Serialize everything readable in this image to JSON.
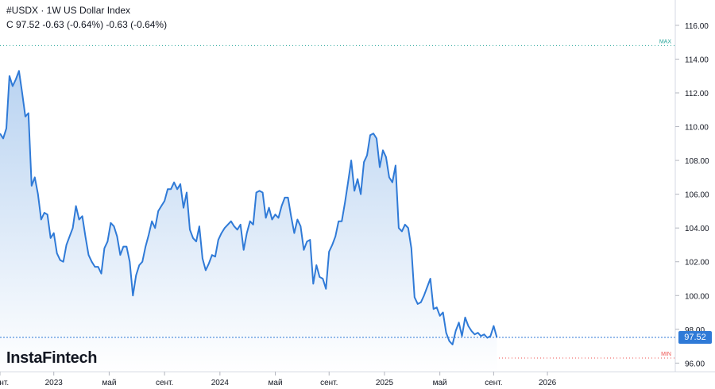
{
  "header": {
    "title": "#USDX · 1W US Dollar Index",
    "quote": "C 97.52 -0.63 (-0.64%) -0.63 (-0.64%)"
  },
  "brand": "InstaFintech",
  "colors": {
    "line": "#2f7ad7",
    "fill_top": "#b9d3f1",
    "fill_bottom": "#ffffff",
    "max_marker": "#26a69a",
    "min_marker": "#ef5350",
    "price_tag": "#2f7ad7"
  },
  "chart_data": {
    "type": "area",
    "symbol": "#USDX",
    "timeframe": "1W",
    "last_price": "97.52",
    "price_tag_label": "97.52",
    "max_label": "MAX",
    "min_label": "MIN",
    "max_value": 114.8,
    "min_value": 96.3,
    "ylim": [
      95.5,
      117.5
    ],
    "y_ticks": [
      96.0,
      98.0,
      100.0,
      102.0,
      104.0,
      106.0,
      108.0,
      110.0,
      112.0,
      114.0,
      116.0
    ],
    "y_tick_labels": [
      "96.00",
      "98.00",
      "100.00",
      "102.00",
      "104.00",
      "106.00",
      "108.00",
      "110.00",
      "112.00",
      "114.00",
      "116.00"
    ],
    "x_range_weeks": [
      0,
      213.4
    ],
    "x_ticks": [
      {
        "week": 0,
        "label": "сент."
      },
      {
        "week": 17,
        "label": "2023"
      },
      {
        "week": 34.5,
        "label": "май"
      },
      {
        "week": 52,
        "label": "сент."
      },
      {
        "week": 69.5,
        "label": "2024"
      },
      {
        "week": 87,
        "label": "май"
      },
      {
        "week": 104,
        "label": "сент."
      },
      {
        "week": 121.5,
        "label": "2025"
      },
      {
        "week": 139,
        "label": "май"
      },
      {
        "week": 156,
        "label": "сент."
      },
      {
        "week": 173,
        "label": "2026"
      }
    ],
    "series": [
      {
        "values": [
          109.6,
          109.3,
          109.9,
          113.0,
          112.4,
          112.8,
          113.3,
          112.0,
          110.6,
          110.8,
          106.5,
          107.0,
          106.0,
          104.5,
          104.9,
          104.8,
          103.4,
          103.7,
          102.5,
          102.1,
          102.0,
          103.0,
          103.5,
          104.0,
          105.3,
          104.5,
          104.7,
          103.5,
          102.4,
          102.0,
          101.7,
          101.7,
          101.3,
          102.8,
          103.2,
          104.3,
          104.1,
          103.5,
          102.4,
          102.9,
          102.9,
          102.0,
          100.0,
          101.2,
          101.8,
          102.0,
          102.9,
          103.6,
          104.4,
          104.0,
          105.0,
          105.3,
          105.6,
          106.3,
          106.3,
          106.7,
          106.3,
          106.6,
          105.2,
          106.1,
          103.9,
          103.4,
          103.2,
          104.1,
          102.2,
          101.5,
          101.9,
          102.4,
          102.3,
          103.3,
          103.7,
          104.0,
          104.2,
          104.4,
          104.1,
          103.9,
          104.2,
          102.7,
          103.7,
          104.4,
          104.2,
          106.1,
          106.2,
          106.1,
          104.6,
          105.2,
          104.5,
          104.8,
          104.6,
          105.3,
          105.8,
          105.8,
          104.7,
          103.7,
          104.5,
          104.1,
          102.7,
          103.2,
          103.3,
          100.7,
          101.8,
          101.1,
          101.0,
          100.4,
          102.6,
          103.0,
          103.5,
          104.4,
          104.4,
          105.5,
          106.7,
          108.0,
          106.2,
          106.9,
          106.0,
          107.9,
          108.3,
          109.5,
          109.6,
          109.3,
          107.6,
          108.6,
          108.2,
          107.0,
          106.7,
          107.7,
          104.0,
          103.8,
          104.2,
          104.0,
          102.8,
          99.9,
          99.5,
          99.6,
          100.0,
          100.5,
          101.0,
          99.2,
          99.3,
          98.8,
          99.0,
          97.8,
          97.3,
          97.1,
          97.9,
          98.4,
          97.6,
          98.7,
          98.2,
          97.9,
          97.7,
          97.8,
          97.6,
          97.7,
          97.5,
          97.6,
          98.2,
          97.52
        ]
      }
    ]
  }
}
